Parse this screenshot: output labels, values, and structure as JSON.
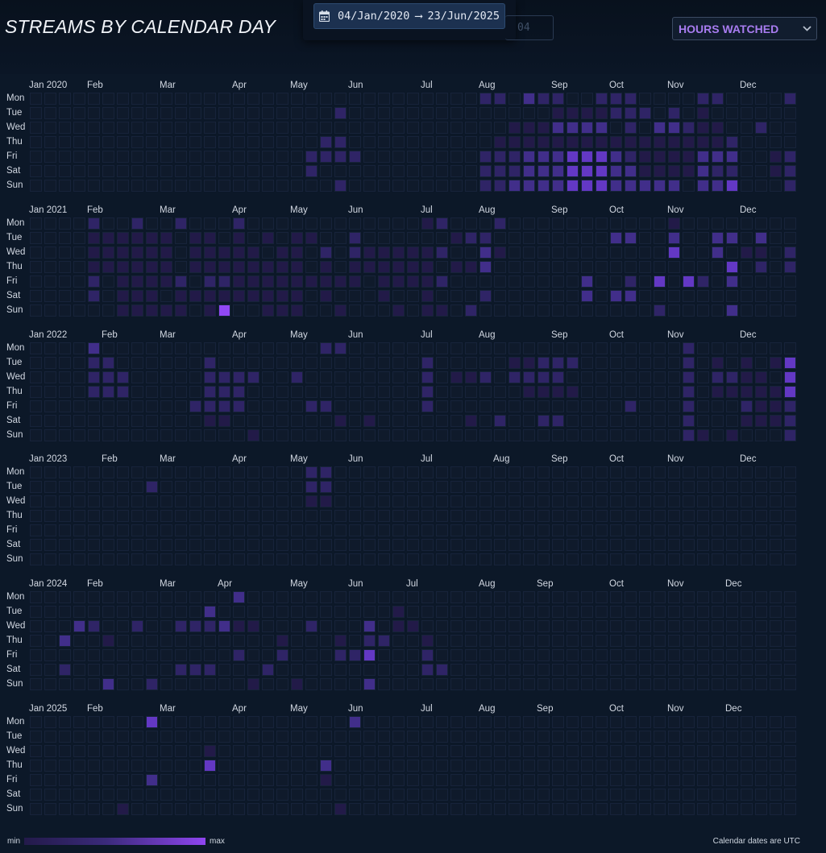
{
  "title": "STREAMS BY CALENDAR DAY",
  "date_range": {
    "start": "04/Jan/2020",
    "arrow": "⟶",
    "end": "23/Jun/2025",
    "icon": "calendar-icon"
  },
  "ghost_input_text": "04",
  "metric_select": {
    "value": "HOURS WATCHED",
    "icon": "chevron-down-icon"
  },
  "legend": {
    "min_label": "min",
    "max_label": "max"
  },
  "footnote": "Calendar dates are UTC",
  "colors": {
    "empty": "#0f1a2b",
    "border": "#17233a",
    "scale": [
      "#221a48",
      "#2f2466",
      "#412e8a",
      "#6338c4",
      "#9148f5"
    ],
    "accent": "#a87cf0",
    "background": "#0c1828"
  },
  "chart_data": {
    "type": "heatmap",
    "title": "STREAMS BY CALENDAR DAY",
    "metric": "HOURS WATCHED",
    "value_scale": "0 = none, 1 (min) to 5 (max)",
    "day_labels": [
      "Mon",
      "Tue",
      "Wed",
      "Thu",
      "Fri",
      "Sat",
      "Sun"
    ],
    "weeks_per_year": 53,
    "years": [
      {
        "year": 2020,
        "months": [
          {
            "label": "Jan 2020",
            "week": 0
          },
          {
            "label": "Feb",
            "week": 4
          },
          {
            "label": "Mar",
            "week": 9
          },
          {
            "label": "Apr",
            "week": 14
          },
          {
            "label": "May",
            "week": 18
          },
          {
            "label": "Jun",
            "week": 22
          },
          {
            "label": "Jul",
            "week": 27
          },
          {
            "label": "Aug",
            "week": 31
          },
          {
            "label": "Sep",
            "week": 36
          },
          {
            "label": "Oct",
            "week": 40
          },
          {
            "label": "Nov",
            "week": 44
          },
          {
            "label": "Dec",
            "week": 49
          }
        ],
        "rows": [
          "0000000000000000000000000000000220322002220000220000200",
          "0000000000000000000002000000000000001111222020100000012",
          "0000000000000000000000000000000001113333020332110020003",
          "0000000000000000000022000000000011111111111111112000002",
          "0000000000000000000222200000000222333444321111333001220",
          "0000000000000000000200000000000222333444331111322001200",
          "0000000000000000000002000000000223333444333330334000200"
        ]
      },
      {
        "year": 2021,
        "months": [
          {
            "label": "Jan 2021",
            "week": 0
          },
          {
            "label": "Feb",
            "week": 4
          },
          {
            "label": "Mar",
            "week": 9
          },
          {
            "label": "Apr",
            "week": 14
          },
          {
            "label": "May",
            "week": 18
          },
          {
            "label": "Jun",
            "week": 22
          },
          {
            "label": "Jul",
            "week": 27
          },
          {
            "label": "Aug",
            "week": 31
          },
          {
            "label": "Sep",
            "week": 36
          },
          {
            "label": "Oct",
            "week": 40
          },
          {
            "label": "Nov",
            "week": 44
          },
          {
            "label": "Dec",
            "week": 49
          }
        ],
        "rows": [
          "0000200200200020000000000001200020000000000010000000000",
          "0000111111011010101100200000012200000000330030033030000",
          "0000111111011111011020211111200310000000000040030110200",
          "0000111111011111111010111111011300000000000000004020200",
          "0000201111202211111111101111200000000030020404203000000",
          "0000201110111111111010001001000200000030330000000000000",
          "0000001111101500111001000101102000000000000200003000000"
        ]
      },
      {
        "year": 2022,
        "months": [
          {
            "label": "Jan 2022",
            "week": 0
          },
          {
            "label": "Feb",
            "week": 5
          },
          {
            "label": "Mar",
            "week": 9
          },
          {
            "label": "Apr",
            "week": 14
          },
          {
            "label": "May",
            "week": 18
          },
          {
            "label": "Jun",
            "week": 22
          },
          {
            "label": "Jul",
            "week": 27
          },
          {
            "label": "Aug",
            "week": 31
          },
          {
            "label": "Sep",
            "week": 36
          },
          {
            "label": "Oct",
            "week": 40
          },
          {
            "label": "Nov",
            "week": 44
          },
          {
            "label": "Dec",
            "week": 49
          }
        ],
        "rows": [
          "0000300000000000000022000000000000000000000002000000000",
          "0000220000002000000000000002000001122200000002010101400",
          "0000222000002222002000000002011202222000000002022110400",
          "0000222000002220000000000002000000111100000002011111400",
          "0000000000022220000220000002000000000000020002000211200",
          "0000000000001100000001010000001020022000000002000111200",
          "0000000000000001000000000000000000000000000002101000240"
        ]
      },
      {
        "year": 2023,
        "months": [
          {
            "label": "Jan 2023",
            "week": 0
          },
          {
            "label": "Feb",
            "week": 5
          },
          {
            "label": "Mar",
            "week": 9
          },
          {
            "label": "Apr",
            "week": 14
          },
          {
            "label": "May",
            "week": 18
          },
          {
            "label": "Jun",
            "week": 22
          },
          {
            "label": "Jul",
            "week": 27
          },
          {
            "label": "Aug",
            "week": 32
          },
          {
            "label": "Sep",
            "week": 36
          },
          {
            "label": "Oct",
            "week": 40
          },
          {
            "label": "Nov",
            "week": 44
          },
          {
            "label": "Dec",
            "week": 49
          }
        ],
        "rows": [
          "0000000000000000000220000000000000000000000000000000000",
          "0000000020000000000220000000000000000000000000000000000",
          "0000000000000000000110000000000000000000000000000000000",
          "0000000000000000000000000000000000000000000000000000000",
          "0000000000000000000000000000000000000000000000000000000",
          "0000000000000000000000000000000000000000000000000000000",
          "0000000000000000000000000000000000000000000000000000000"
        ]
      },
      {
        "year": 2024,
        "months": [
          {
            "label": "Jan 2024",
            "week": 0
          },
          {
            "label": "Feb",
            "week": 4
          },
          {
            "label": "Mar",
            "week": 9
          },
          {
            "label": "Apr",
            "week": 13
          },
          {
            "label": "May",
            "week": 18
          },
          {
            "label": "Jun",
            "week": 22
          },
          {
            "label": "Jul",
            "week": 26
          },
          {
            "label": "Aug",
            "week": 31
          },
          {
            "label": "Sep",
            "week": 35
          },
          {
            "label": "Oct",
            "week": 40
          },
          {
            "label": "Nov",
            "week": 44
          },
          {
            "label": "Dec",
            "week": 48
          }
        ],
        "rows": [
          "0000000000000030000000000000000000000000000000000000000",
          "0000000000003000000000000100000000000000000000000000000",
          "0003200200222311000200030110000000000000000000000000000",
          "0030010000000000010001022001000000000000000000000000000",
          "0000000000000020020002240002000000000000000000000000000",
          "0020000000222000200000000002200000000000000000000000000",
          "0000030020000001001000030000000000000000000000000000000"
        ]
      },
      {
        "year": 2025,
        "months": [
          {
            "label": "Jan 2025",
            "week": 0
          },
          {
            "label": "Feb",
            "week": 4
          },
          {
            "label": "Mar",
            "week": 9
          },
          {
            "label": "Apr",
            "week": 14
          },
          {
            "label": "May",
            "week": 18
          },
          {
            "label": "Jun",
            "week": 22
          },
          {
            "label": "Jul",
            "week": 27
          },
          {
            "label": "Aug",
            "week": 31
          },
          {
            "label": "Sep",
            "week": 35
          },
          {
            "label": "Oct",
            "week": 40
          },
          {
            "label": "Nov",
            "week": 44
          },
          {
            "label": "Dec",
            "week": 48
          }
        ],
        "rows": [
          "0000000040000000000000300000000000000000000000000000000",
          "0000000000000000000000000000000000000000000000000000000",
          "0000000000001000000000000000000000000000000000000000000",
          "0000000000004000000030000000000000000000000000000000000",
          "0000000030000000000010000000000000000000000000000000000",
          "0000000000000000000000000000000000000000000000000000000",
          "0000001000000000000001000000000000000000000000000000000"
        ]
      }
    ]
  }
}
